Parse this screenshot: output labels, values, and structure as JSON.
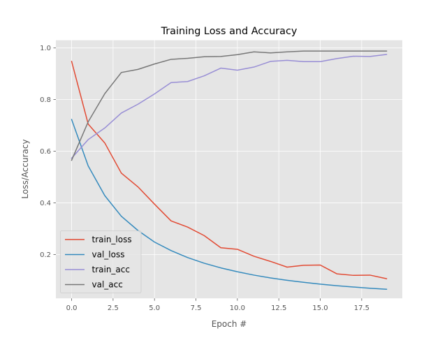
{
  "chart_data": {
    "type": "line",
    "title": "Training Loss and Accuracy",
    "xlabel": "Epoch #",
    "ylabel": "Loss/Accuracy",
    "xlim": [
      -0.95,
      19.95
    ],
    "ylim": [
      0.03,
      1.03
    ],
    "x_ticks": [
      0,
      2.5,
      5,
      7.5,
      10,
      12.5,
      15,
      17.5
    ],
    "x_tick_labels": [
      "0.0",
      "2.5",
      "5.0",
      "7.5",
      "10.0",
      "12.5",
      "15.0",
      "17.5"
    ],
    "y_ticks": [
      0.2,
      0.4,
      0.6,
      0.8,
      1.0
    ],
    "y_tick_labels": [
      "0.2",
      "0.4",
      "0.6",
      "0.8",
      "1.0"
    ],
    "grid": true,
    "legend_position": "lower-left",
    "x": [
      0,
      1,
      2,
      3,
      4,
      5,
      6,
      7,
      8,
      9,
      10,
      11,
      12,
      13,
      14,
      15,
      16,
      17,
      18,
      19
    ],
    "series": [
      {
        "name": "train_loss",
        "color": "#e24a33",
        "values": [
          0.948,
          0.705,
          0.632,
          0.515,
          0.462,
          0.395,
          0.33,
          0.306,
          0.273,
          0.226,
          0.22,
          0.193,
          0.173,
          0.151,
          0.158,
          0.159,
          0.125,
          0.119,
          0.12,
          0.106
        ]
      },
      {
        "name": "val_loss",
        "color": "#348abd",
        "values": [
          0.723,
          0.543,
          0.428,
          0.348,
          0.293,
          0.248,
          0.215,
          0.188,
          0.166,
          0.148,
          0.133,
          0.12,
          0.109,
          0.1,
          0.092,
          0.085,
          0.079,
          0.074,
          0.069,
          0.065
        ]
      },
      {
        "name": "train_acc",
        "color": "#988ed5",
        "values": [
          0.573,
          0.645,
          0.69,
          0.748,
          0.782,
          0.822,
          0.866,
          0.87,
          0.892,
          0.922,
          0.914,
          0.926,
          0.948,
          0.952,
          0.947,
          0.947,
          0.959,
          0.968,
          0.967,
          0.975
        ]
      },
      {
        "name": "val_acc",
        "color": "#777777",
        "values": [
          0.565,
          0.714,
          0.823,
          0.905,
          0.917,
          0.938,
          0.956,
          0.96,
          0.966,
          0.967,
          0.974,
          0.985,
          0.981,
          0.985,
          0.988,
          0.988,
          0.988,
          0.988,
          0.988,
          0.988
        ]
      }
    ]
  }
}
